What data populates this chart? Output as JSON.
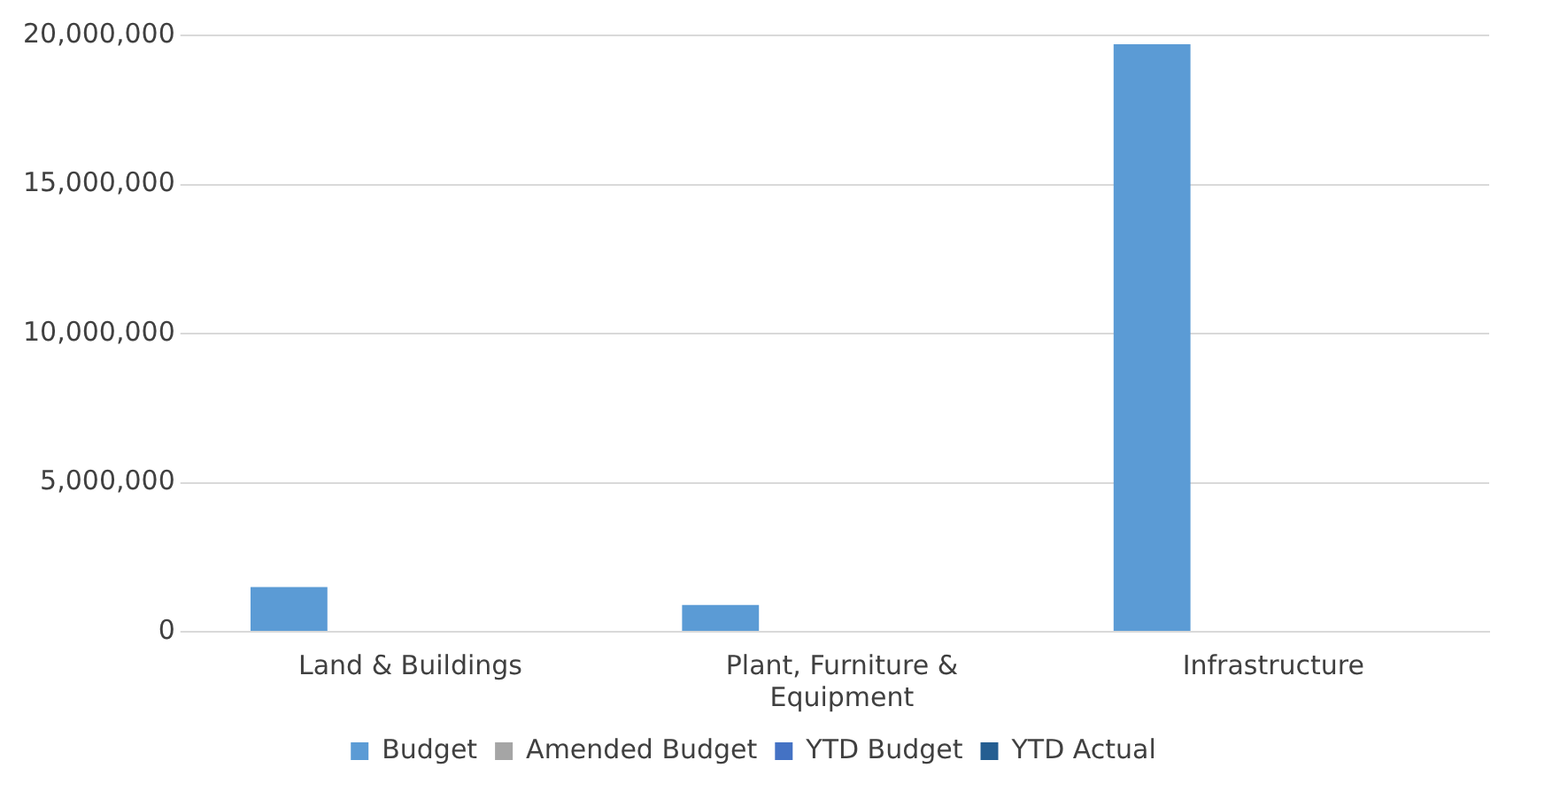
{
  "chart_data": {
    "type": "bar",
    "categories": [
      "Land & Buildings",
      "Plant, Furniture & Equipment",
      "Infrastructure"
    ],
    "series": [
      {
        "name": "Budget",
        "color": "#5b9bd5",
        "values": [
          1500000,
          900000,
          19700000
        ]
      },
      {
        "name": "Amended Budget",
        "color": "#a5a5a5",
        "values": [
          0,
          0,
          0
        ]
      },
      {
        "name": "YTD Budget",
        "color": "#4472c4",
        "values": [
          0,
          0,
          0
        ]
      },
      {
        "name": "YTD Actual",
        "color": "#255e91",
        "values": [
          0,
          0,
          0
        ]
      }
    ],
    "ylim": [
      0,
      20000000
    ],
    "yticks": [
      0,
      {
        "value": 5000000,
        "label": "5,000,000"
      },
      {
        "value": 10000000,
        "label": "10,000,000"
      },
      {
        "value": 15000000,
        "label": "15,000,000"
      },
      {
        "value": 20000000,
        "label": "20,000,000"
      }
    ],
    "grid": "y",
    "legend": "bottom"
  }
}
